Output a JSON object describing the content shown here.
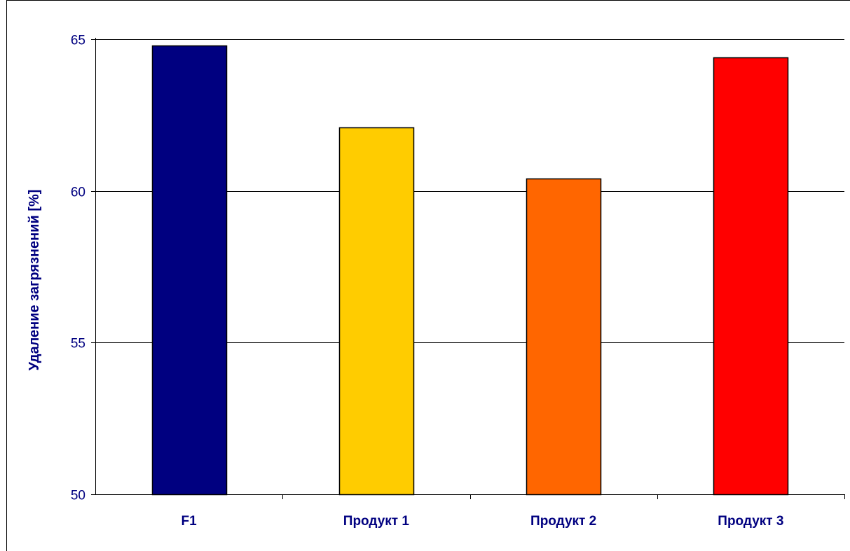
{
  "chart_data": {
    "type": "bar",
    "categories": [
      "F1",
      "Продукт 1",
      "Продукт 2",
      "Продукт 3"
    ],
    "values": [
      64.8,
      62.1,
      60.4,
      64.4
    ],
    "colors": [
      "#000080",
      "#ffcc00",
      "#ff6600",
      "#ff0000"
    ],
    "ylabel": "Удаление загрязнений [%]",
    "xlabel": "",
    "title": "",
    "ylim": [
      50,
      65
    ],
    "yticks": [
      50,
      55,
      60,
      65
    ],
    "grid": true,
    "legend": "none",
    "axis_text_color": "#000080",
    "bar_outline_color": "#000000"
  }
}
